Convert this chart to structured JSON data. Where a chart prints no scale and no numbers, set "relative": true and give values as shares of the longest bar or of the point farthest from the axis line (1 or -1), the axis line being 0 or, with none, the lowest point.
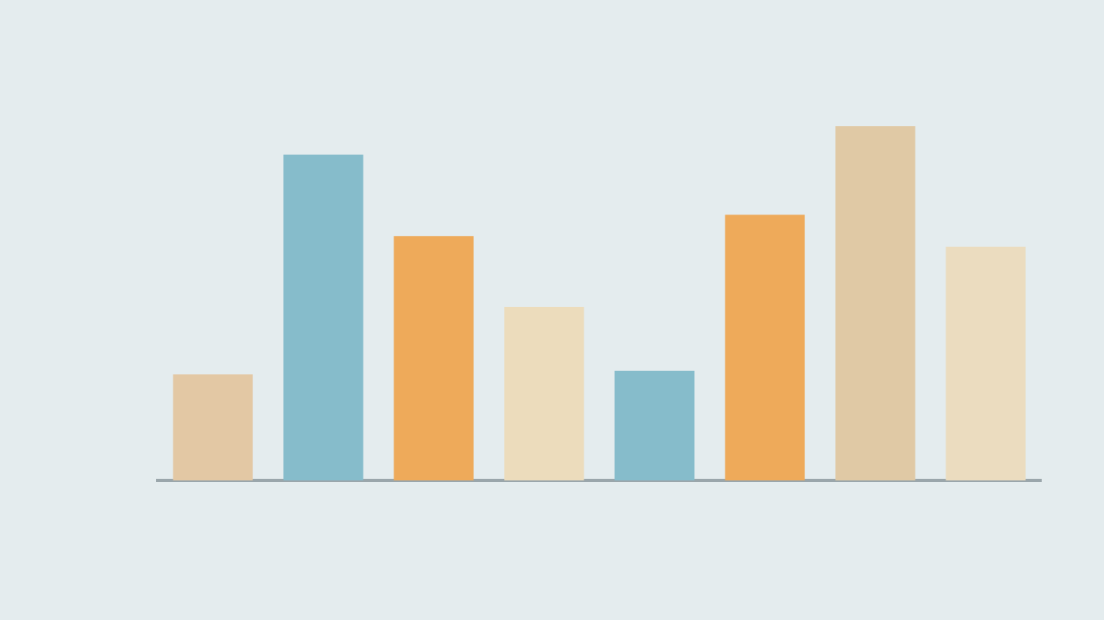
{
  "chart_data": {
    "type": "bar",
    "relative": true,
    "categories": [
      null,
      null,
      null,
      null,
      null,
      null,
      null,
      null
    ],
    "values": [
      0.3,
      0.92,
      0.69,
      0.49,
      0.31,
      0.75,
      1,
      0.66
    ],
    "colors": [
      "#e3c8a4",
      "#86bccb",
      "#eeaa5a",
      "#ecdcbc",
      "#86bccb",
      "#eeaa5a",
      "#e0c9a5",
      "#ebdcbf"
    ]
  }
}
